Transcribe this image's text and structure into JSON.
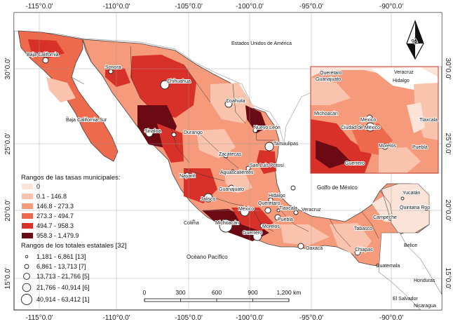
{
  "map": {
    "lon_ticks": [
      "-115°0.0'",
      "-110°0.0'",
      "-105°0.0'",
      "-100°0.0'",
      "-95°0.0'",
      "-90°0.0'"
    ],
    "lat_ticks_left": [
      "30°0.0'",
      "25°0.0'",
      "20°0.0'",
      "15°0.0'"
    ],
    "lat_ticks_right": [
      "30°0.0'",
      "25°0.0'",
      "20°0.0'",
      "15°0.0'"
    ]
  },
  "labels": {
    "usa": "Estados Unidos de América",
    "baja_california": "Baja California",
    "sonora": "Sonora",
    "chihuahua": "Chihuahua",
    "coahuila": "Coahuila",
    "nuevo_leon": "Nuevo León",
    "tamaulipas": "Tamaulipas",
    "baja_california_sur": "Baja California Sur",
    "sinaloa": "Sinaloa",
    "durango": "Durango",
    "zacatecas": "Zacatecas",
    "san_luis_potosi": "San Luis Potosí",
    "aguascalientes": "Aguascalientes",
    "nayarit": "Nayarit",
    "guanajuato": "Guanajuato",
    "queretaro": "Querétaro",
    "hidalgo": "Hidalgo",
    "jalisco": "Jalisco",
    "colima": "Colima",
    "michoacan": "Michoacán",
    "mexico": "México",
    "tlaxcala": "Tlaxcala",
    "puebla": "Puebla",
    "veracruz": "Veracruz",
    "morelos": "Morelos",
    "guerrero": "Guerrero",
    "oaxaca": "Oaxaca",
    "tabasco": "Tabasco",
    "campeche": "Campeche",
    "yucatan": "Yucatán",
    "quintana_roo": "Quintana Roo",
    "chiapas": "Chiapas",
    "belice": "Belice",
    "guatemala": "Guatemala",
    "el_salvador": "El Salvador",
    "honduras": "Honduras",
    "nicaragua": "Nicaragua",
    "golfo": "Golfo de México",
    "pacifico": "Océano Pacífico"
  },
  "inset": {
    "queretaro": "Querétaro",
    "guanajuato": "Guanajuato",
    "veracruz": "Veracruz",
    "hidalgo": "Hidalgo",
    "michoacan": "Michoacán",
    "mexico": "México",
    "cdmx": "Ciudad de México",
    "tlaxcala": "Tlaxcala",
    "morelos": "Morelos",
    "puebla": "Puebla",
    "guerrero": "Guerrero"
  },
  "legend": {
    "rates_title": "Rangos de las tasas municipales:",
    "rates": [
      {
        "label": "0",
        "color": "#fbe3d8"
      },
      {
        "label": "0.1 - 146.8",
        "color": "#f9c3ad"
      },
      {
        "label": "146.8 - 273.3",
        "color": "#f59a7a"
      },
      {
        "label": "273.3 - 494.7",
        "color": "#ee6a4c"
      },
      {
        "label": "494.7 - 958.3",
        "color": "#d8312a"
      },
      {
        "label": "958.3 - 1,479.9",
        "color": "#6b0a12"
      }
    ],
    "totals_title": "Rangos de los totales estatales [32]",
    "totals": [
      {
        "label": "1,181 - 6,861 [13]"
      },
      {
        "label": "6,861 - 13,713 [7]"
      },
      {
        "label": "13,713 - 21,766 [5]"
      },
      {
        "label": "21,766 - 40,914 [6]"
      },
      {
        "label": "40,914 - 63,412 [1]"
      }
    ]
  },
  "scale_bar": {
    "ticks": [
      "0",
      "300",
      "600",
      "900",
      "1,200 km"
    ]
  },
  "north_arrow": {
    "label": "N"
  }
}
